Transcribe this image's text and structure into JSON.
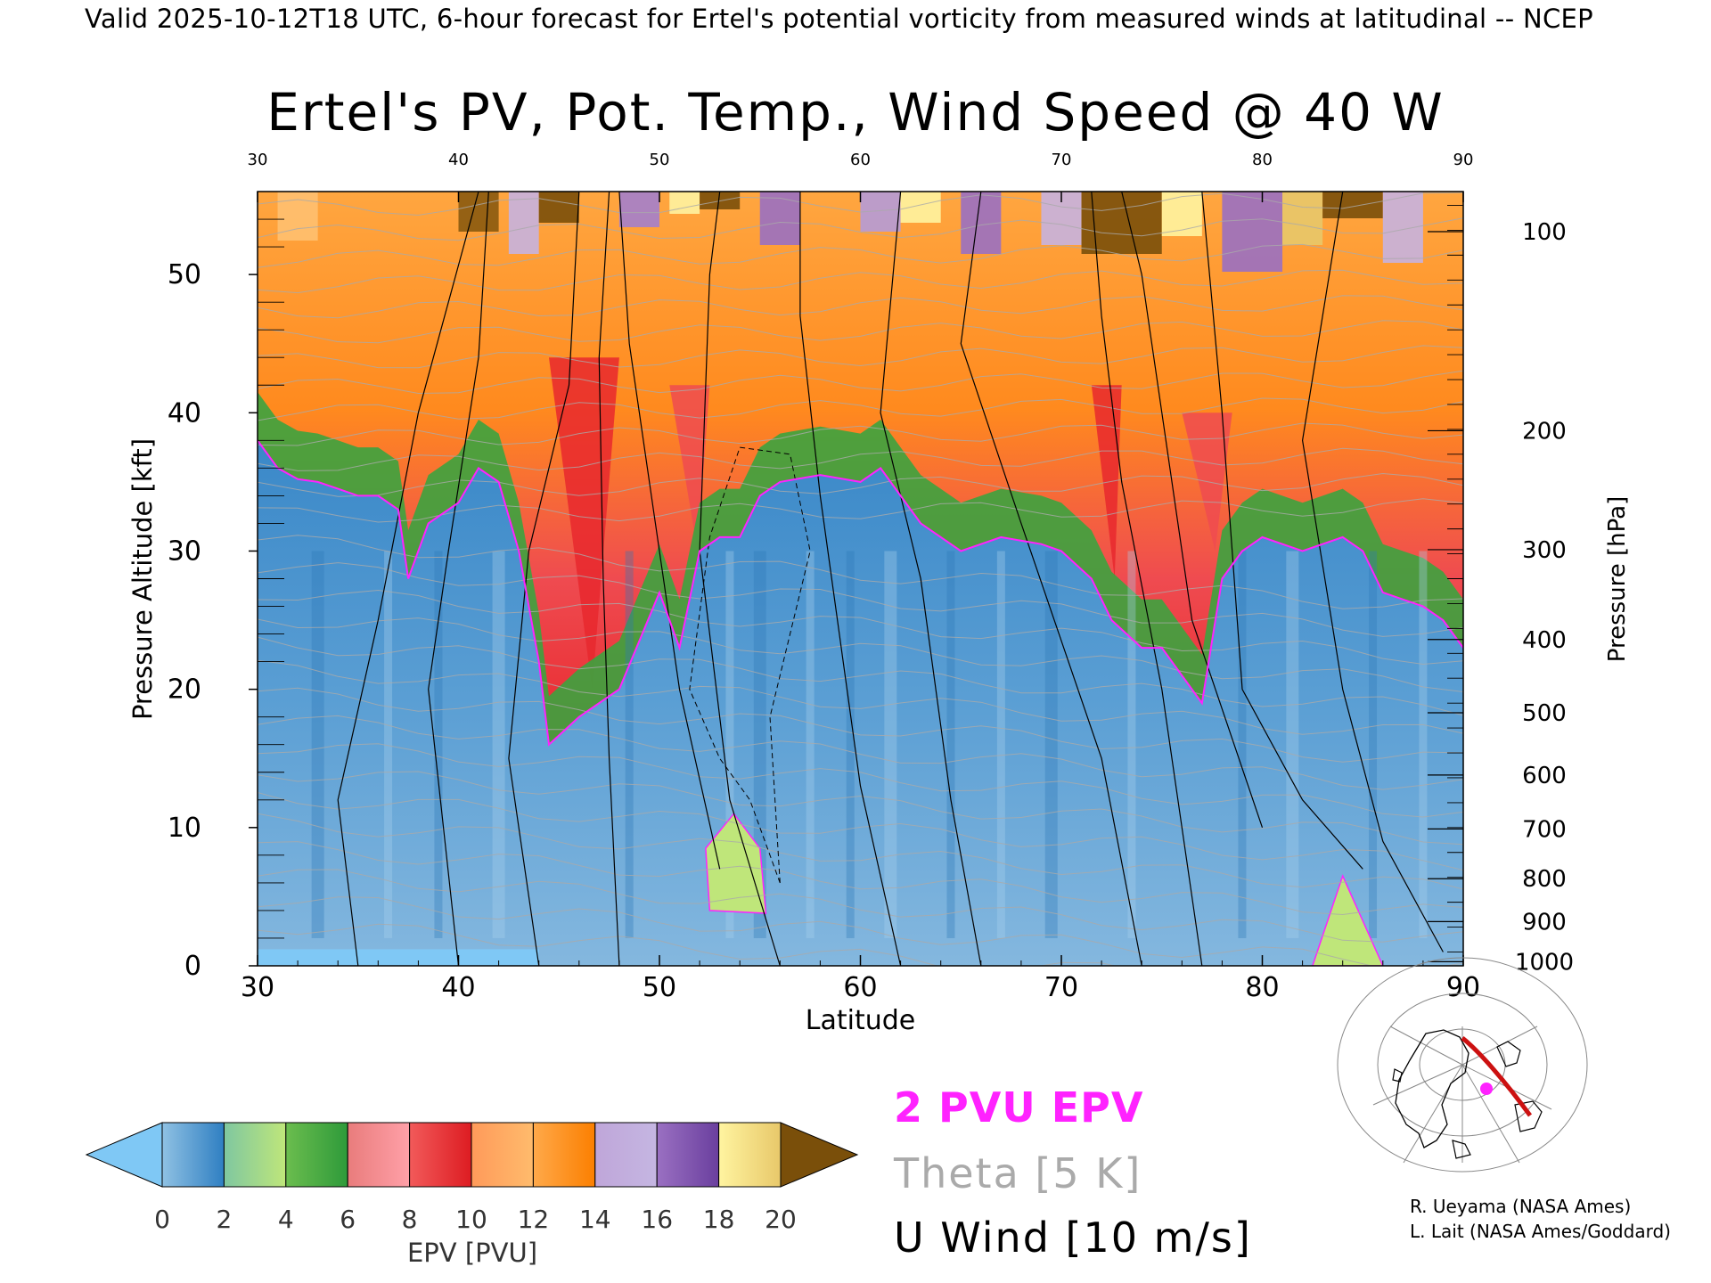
{
  "header": "Valid 2025-10-12T18 UTC, 6-hour forecast for Ertel's potential vorticity from measured winds at latitudinal -- NCEP",
  "chart_data": {
    "type": "heatmap",
    "title": "Ertel's PV, Pot. Temp., Wind Speed @ 40 W",
    "xlabel": "Latitude",
    "ylabel": "Pressure Altitude [kft]",
    "ylabel_right": "Pressure [hPa]",
    "xlim": [
      30,
      90
    ],
    "ylim": [
      0,
      56
    ],
    "x_ticks": [
      "30",
      "40",
      "50",
      "60",
      "70",
      "80",
      "90"
    ],
    "x_ticks_top": [
      "30",
      "40",
      "50",
      "60",
      "70",
      "80",
      "90"
    ],
    "y_ticks": [
      "0",
      "10",
      "20",
      "30",
      "40",
      "50"
    ],
    "pressure_ticks": [
      {
        "label": "100",
        "kft": 53.1
      },
      {
        "label": "200",
        "kft": 38.7
      },
      {
        "label": "300",
        "kft": 30.1
      },
      {
        "label": "400",
        "kft": 23.6
      },
      {
        "label": "500",
        "kft": 18.3
      },
      {
        "label": "600",
        "kft": 13.8
      },
      {
        "label": "700",
        "kft": 9.9
      },
      {
        "label": "800",
        "kft": 6.3
      },
      {
        "label": "900",
        "kft": 3.2
      },
      {
        "label": "1000",
        "kft": 0.3
      }
    ],
    "tropopause_2pvu_kft": [
      {
        "lat": 30,
        "kft": 38
      },
      {
        "lat": 31,
        "kft": 36
      },
      {
        "lat": 32,
        "kft": 35.2
      },
      {
        "lat": 33,
        "kft": 35
      },
      {
        "lat": 34,
        "kft": 34.5
      },
      {
        "lat": 35,
        "kft": 34
      },
      {
        "lat": 36,
        "kft": 34
      },
      {
        "lat": 37,
        "kft": 33
      },
      {
        "lat": 37.5,
        "kft": 28
      },
      {
        "lat": 38.5,
        "kft": 32
      },
      {
        "lat": 40,
        "kft": 33.5
      },
      {
        "lat": 41,
        "kft": 36
      },
      {
        "lat": 42,
        "kft": 35
      },
      {
        "lat": 43,
        "kft": 30
      },
      {
        "lat": 44,
        "kft": 22
      },
      {
        "lat": 44.5,
        "kft": 16
      },
      {
        "lat": 46,
        "kft": 18
      },
      {
        "lat": 48,
        "kft": 20
      },
      {
        "lat": 50,
        "kft": 27
      },
      {
        "lat": 51,
        "kft": 23
      },
      {
        "lat": 52,
        "kft": 30
      },
      {
        "lat": 53,
        "kft": 31
      },
      {
        "lat": 54,
        "kft": 31
      },
      {
        "lat": 55,
        "kft": 34
      },
      {
        "lat": 56,
        "kft": 35
      },
      {
        "lat": 58,
        "kft": 35.5
      },
      {
        "lat": 60,
        "kft": 35
      },
      {
        "lat": 61,
        "kft": 36
      },
      {
        "lat": 62,
        "kft": 34
      },
      {
        "lat": 63,
        "kft": 32
      },
      {
        "lat": 65,
        "kft": 30
      },
      {
        "lat": 67,
        "kft": 31
      },
      {
        "lat": 69,
        "kft": 30.5
      },
      {
        "lat": 70,
        "kft": 30
      },
      {
        "lat": 71.5,
        "kft": 28
      },
      {
        "lat": 72.5,
        "kft": 25
      },
      {
        "lat": 74,
        "kft": 23
      },
      {
        "lat": 75,
        "kft": 23
      },
      {
        "lat": 77,
        "kft": 19
      },
      {
        "lat": 78,
        "kft": 28
      },
      {
        "lat": 79,
        "kft": 30
      },
      {
        "lat": 80,
        "kft": 31
      },
      {
        "lat": 82,
        "kft": 30
      },
      {
        "lat": 84,
        "kft": 31
      },
      {
        "lat": 85,
        "kft": 30
      },
      {
        "lat": 86,
        "kft": 27
      },
      {
        "lat": 87,
        "kft": 26.5
      },
      {
        "lat": 88,
        "kft": 26
      },
      {
        "lat": 89,
        "kft": 25
      },
      {
        "lat": 90,
        "kft": 23
      }
    ],
    "colorbar": {
      "label": "EPV [PVU]",
      "ticks": [
        "0",
        "2",
        "4",
        "6",
        "8",
        "10",
        "12",
        "14",
        "16",
        "18",
        "20"
      ],
      "bands": [
        {
          "from": 0,
          "to": 2,
          "colors": [
            "#8fc1e3",
            "#2f7fc2"
          ]
        },
        {
          "from": 2,
          "to": 4,
          "colors": [
            "#7fc7a0",
            "#bfe67a"
          ]
        },
        {
          "from": 4,
          "to": 6,
          "colors": [
            "#6bbd4e",
            "#2e9a3a"
          ]
        },
        {
          "from": 6,
          "to": 8,
          "colors": [
            "#e97c7c",
            "#ffa0a8"
          ]
        },
        {
          "from": 8,
          "to": 10,
          "colors": [
            "#f25a5a",
            "#dd1c22"
          ]
        },
        {
          "from": 10,
          "to": 12,
          "colors": [
            "#ff9a5a",
            "#ffbb6c"
          ]
        },
        {
          "from": 12,
          "to": 14,
          "colors": [
            "#ffa94a",
            "#fb7f00"
          ]
        },
        {
          "from": 14,
          "to": 16,
          "colors": [
            "#bfa6d9",
            "#c5b6e2"
          ]
        },
        {
          "from": 16,
          "to": 18,
          "colors": [
            "#9a70c2",
            "#6a3f9e"
          ]
        },
        {
          "from": 18,
          "to": 20,
          "colors": [
            "#fff4a0",
            "#e8c86a"
          ]
        }
      ],
      "under_color": "#7fc8f5",
      "over_color": "#7a4f0a"
    }
  },
  "legend": {
    "epv": "2 PVU EPV",
    "theta": "Theta [5 K]",
    "wind": "U Wind [10 m/s]"
  },
  "credits": {
    "line1": "R. Ueyama (NASA Ames)",
    "line2": "L. Lait (NASA Ames/Goddard)"
  },
  "colors": {
    "tropopause": "#ff22ff",
    "theta": "#aaaaaa",
    "wind": "#000000",
    "track": "#cc1111"
  }
}
